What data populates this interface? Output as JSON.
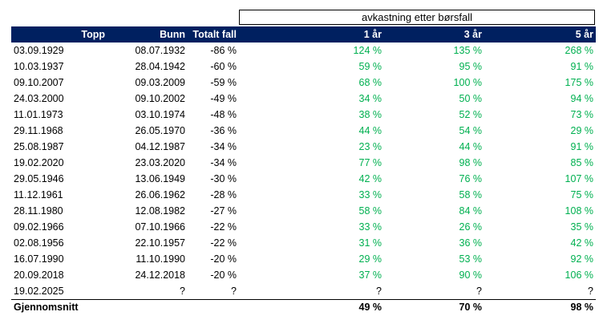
{
  "header": {
    "group_title": "avkastning etter børsfall",
    "columns": [
      "Topp",
      "Bunn",
      "Totalt fall",
      "1 år",
      "3 år",
      "5 år"
    ]
  },
  "rows": [
    [
      "03.09.1929",
      "08.07.1932",
      "-86 %",
      "124 %",
      "135 %",
      "268 %"
    ],
    [
      "10.03.1937",
      "28.04.1942",
      "-60 %",
      "59 %",
      "95 %",
      "91 %"
    ],
    [
      "09.10.2007",
      "09.03.2009",
      "-59 %",
      "68 %",
      "100 %",
      "175 %"
    ],
    [
      "24.03.2000",
      "09.10.2002",
      "-49 %",
      "34 %",
      "50 %",
      "94 %"
    ],
    [
      "11.01.1973",
      "03.10.1974",
      "-48 %",
      "38 %",
      "52 %",
      "73 %"
    ],
    [
      "29.11.1968",
      "26.05.1970",
      "-36 %",
      "44 %",
      "54 %",
      "29 %"
    ],
    [
      "25.08.1987",
      "04.12.1987",
      "-34 %",
      "23 %",
      "44 %",
      "91 %"
    ],
    [
      "19.02.2020",
      "23.03.2020",
      "-34 %",
      "77 %",
      "98 %",
      "85 %"
    ],
    [
      "29.05.1946",
      "13.06.1949",
      "-30 %",
      "42 %",
      "76 %",
      "107 %"
    ],
    [
      "11.12.1961",
      "26.06.1962",
      "-28 %",
      "33 %",
      "58 %",
      "75 %"
    ],
    [
      "28.11.1980",
      "12.08.1982",
      "-27 %",
      "58 %",
      "84 %",
      "108 %"
    ],
    [
      "09.02.1966",
      "07.10.1966",
      "-22 %",
      "33 %",
      "26 %",
      "35 %"
    ],
    [
      "02.08.1956",
      "22.10.1957",
      "-22 %",
      "31 %",
      "36 %",
      "42 %"
    ],
    [
      "16.07.1990",
      "11.10.1990",
      "-20 %",
      "29 %",
      "53 %",
      "92 %"
    ],
    [
      "20.09.2018",
      "24.12.2018",
      "-20 %",
      "37 %",
      "90 %",
      "106 %"
    ],
    [
      "19.02.2025",
      "?",
      "?",
      "?",
      "?",
      "?"
    ]
  ],
  "average": {
    "label": "Gjennomsnitt",
    "values": [
      "49 %",
      "70 %",
      "98 %"
    ]
  },
  "colors": {
    "header_bg": "#002060",
    "positive": "#00b050"
  }
}
